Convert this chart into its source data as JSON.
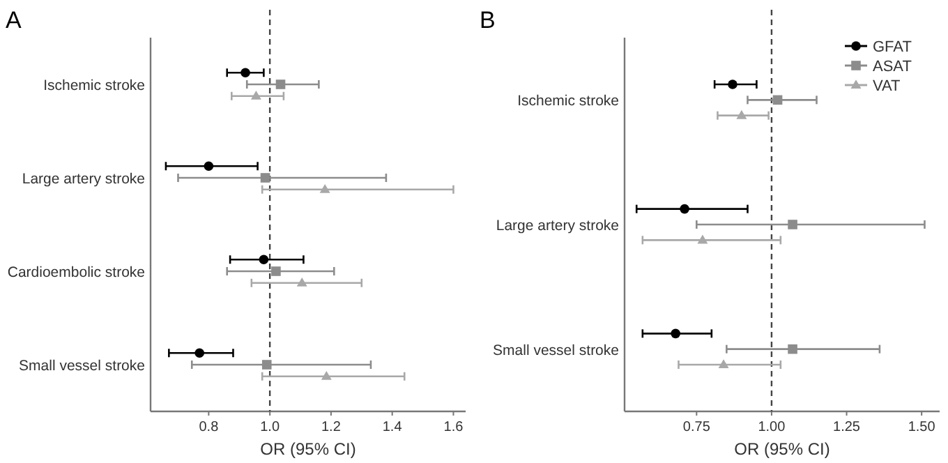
{
  "chart_data": [
    {
      "type": "scatter",
      "title": "A",
      "xlabel": "OR (95% CI)",
      "orientation": "horizontal",
      "categories": [
        "Ischemic stroke",
        "Large artery stroke",
        "Cardioembolic stroke",
        "Small vessel stroke"
      ],
      "xlim": [
        0.61,
        1.64
      ],
      "xticks": [
        {
          "value": 0.8,
          "label": "0.8"
        },
        {
          "value": 1.0,
          "label": "1.0"
        },
        {
          "value": 1.2,
          "label": "1.2"
        },
        {
          "value": 1.4,
          "label": "1.4"
        },
        {
          "value": 1.6,
          "label": "1.6"
        }
      ],
      "grid": false,
      "legend": false,
      "ref_lines": [
        {
          "axis": "x",
          "value": 1,
          "line_style": "dashed"
        }
      ],
      "series": [
        {
          "color": "#000000",
          "marker": "circle",
          "values": [
            0.92,
            0.8,
            0.98,
            0.77
          ],
          "errors": [
            [
              0.86,
              0.98
            ],
            [
              0.66,
              0.96
            ],
            [
              0.87,
              1.11
            ],
            [
              0.67,
              0.88
            ]
          ]
        },
        {
          "color": "#8c8c8c",
          "marker": "square",
          "values": [
            1.035,
            0.985,
            1.02,
            0.99
          ],
          "errors": [
            [
              0.925,
              1.16
            ],
            [
              0.7,
              1.38
            ],
            [
              0.86,
              1.21
            ],
            [
              0.745,
              1.33
            ]
          ]
        },
        {
          "color": "#a8a8a8",
          "marker": "triangle",
          "values": [
            0.955,
            1.18,
            1.105,
            1.185
          ],
          "errors": [
            [
              0.875,
              1.045
            ],
            [
              0.975,
              1.6
            ],
            [
              0.94,
              1.3
            ],
            [
              0.975,
              1.44
            ]
          ]
        }
      ]
    },
    {
      "type": "scatter",
      "title": "B",
      "xlabel": "OR (95% CI)",
      "orientation": "horizontal",
      "categories": [
        "Ischemic stroke",
        "Large artery stroke",
        "Small vessel stroke"
      ],
      "xlim": [
        0.51,
        1.56
      ],
      "xticks": [
        {
          "value": 0.75,
          "label": "0.75"
        },
        {
          "value": 1.0,
          "label": "1.00"
        },
        {
          "value": 1.25,
          "label": "1.25"
        },
        {
          "value": 1.5,
          "label": "1.50"
        }
      ],
      "grid": false,
      "legend": "top right",
      "ref_lines": [
        {
          "axis": "x",
          "value": 1,
          "line_style": "dashed"
        }
      ],
      "series": [
        {
          "name": "GFAT",
          "color": "#000000",
          "marker": "circle",
          "values": [
            0.87,
            0.71,
            0.68
          ],
          "errors": [
            [
              0.81,
              0.95
            ],
            [
              0.55,
              0.92
            ],
            [
              0.57,
              0.8
            ]
          ]
        },
        {
          "name": "ASAT",
          "color": "#8c8c8c",
          "marker": "square",
          "values": [
            1.02,
            1.07,
            1.07
          ],
          "errors": [
            [
              0.92,
              1.15
            ],
            [
              0.75,
              1.51
            ],
            [
              0.85,
              1.36
            ]
          ]
        },
        {
          "name": "VAT",
          "color": "#a8a8a8",
          "marker": "triangle",
          "values": [
            0.9,
            0.77,
            0.84
          ],
          "errors": [
            [
              0.82,
              0.99
            ],
            [
              0.57,
              1.03
            ],
            [
              0.69,
              1.03
            ]
          ]
        }
      ]
    }
  ]
}
